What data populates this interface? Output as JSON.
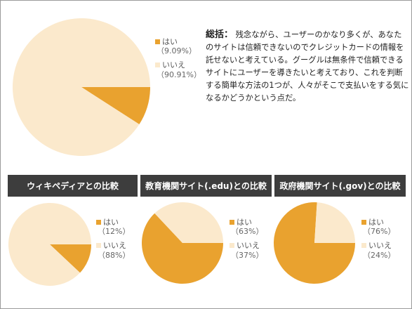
{
  "colors": {
    "yes": "#e9a22f",
    "no": "#fbe9cc"
  },
  "summary": {
    "head": "総括：",
    "body": "残念ながら、ユーザーのかなり多くが、あなたのサイトは信頼できないのでクレジットカードの情報を託せないと考えている。グーグルは無条件で信頼できるサイトにユーザーを導きたいと考えており、これを判断する簡単な方法の1つが、人々がそこで支払いをする気になるかどうかという点だ。"
  },
  "chart_data": [
    {
      "type": "pie",
      "title": "",
      "series": [
        {
          "name": "はい",
          "value": 9.09,
          "label": "（9.09%）"
        },
        {
          "name": "いいえ",
          "value": 90.91,
          "label": "（90.91%）"
        }
      ]
    },
    {
      "type": "pie",
      "title": "ウィキペディアとの比較",
      "series": [
        {
          "name": "はい",
          "value": 12,
          "label": "（12%）"
        },
        {
          "name": "いいえ",
          "value": 88,
          "label": "（88%）"
        }
      ]
    },
    {
      "type": "pie",
      "title": "教育機関サイト(.edu)との比較",
      "series": [
        {
          "name": "はい",
          "value": 63,
          "label": "（63%）"
        },
        {
          "name": "いいえ",
          "value": 37,
          "label": "（37%）"
        }
      ]
    },
    {
      "type": "pie",
      "title": "政府機関サイト(.gov)との比較",
      "series": [
        {
          "name": "はい",
          "value": 76,
          "label": "（76%）"
        },
        {
          "name": "いいえ",
          "value": 24,
          "label": "（24%）"
        }
      ]
    }
  ]
}
